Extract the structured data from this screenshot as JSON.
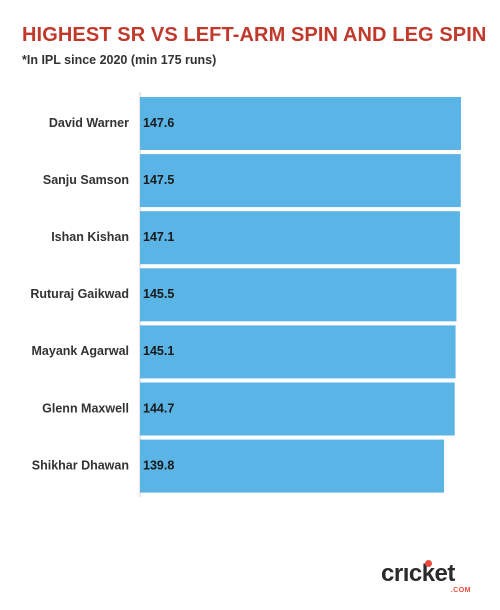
{
  "title": "HIGHEST SR VS LEFT-ARM SPIN AND LEG SPIN",
  "subtitle": "*In IPL since 2020 (min 175 runs)",
  "logo": {
    "text": "crıcket",
    "sub": ".COM"
  },
  "colors": {
    "bar": "#5ab4e5",
    "title": "#c0392b",
    "axis": "#d0d0d0",
    "accent": "#e74c3c"
  },
  "chart_data": {
    "type": "bar",
    "orientation": "horizontal",
    "categories": [
      "David Warner",
      "Sanju Samson",
      "Ishan Kishan",
      "Ruturaj Gaikwad",
      "Mayank Agarwal",
      "Glenn Maxwell",
      "Shikhar Dhawan"
    ],
    "values": [
      147.6,
      147.5,
      147.1,
      145.5,
      145.1,
      144.7,
      139.8
    ],
    "data_labels": [
      "147.6",
      "147.5",
      "147.1",
      "145.5",
      "145.1",
      "144.7",
      "139.8"
    ],
    "xlim": [
      0,
      147.6
    ],
    "grid": false,
    "legend": "none"
  }
}
